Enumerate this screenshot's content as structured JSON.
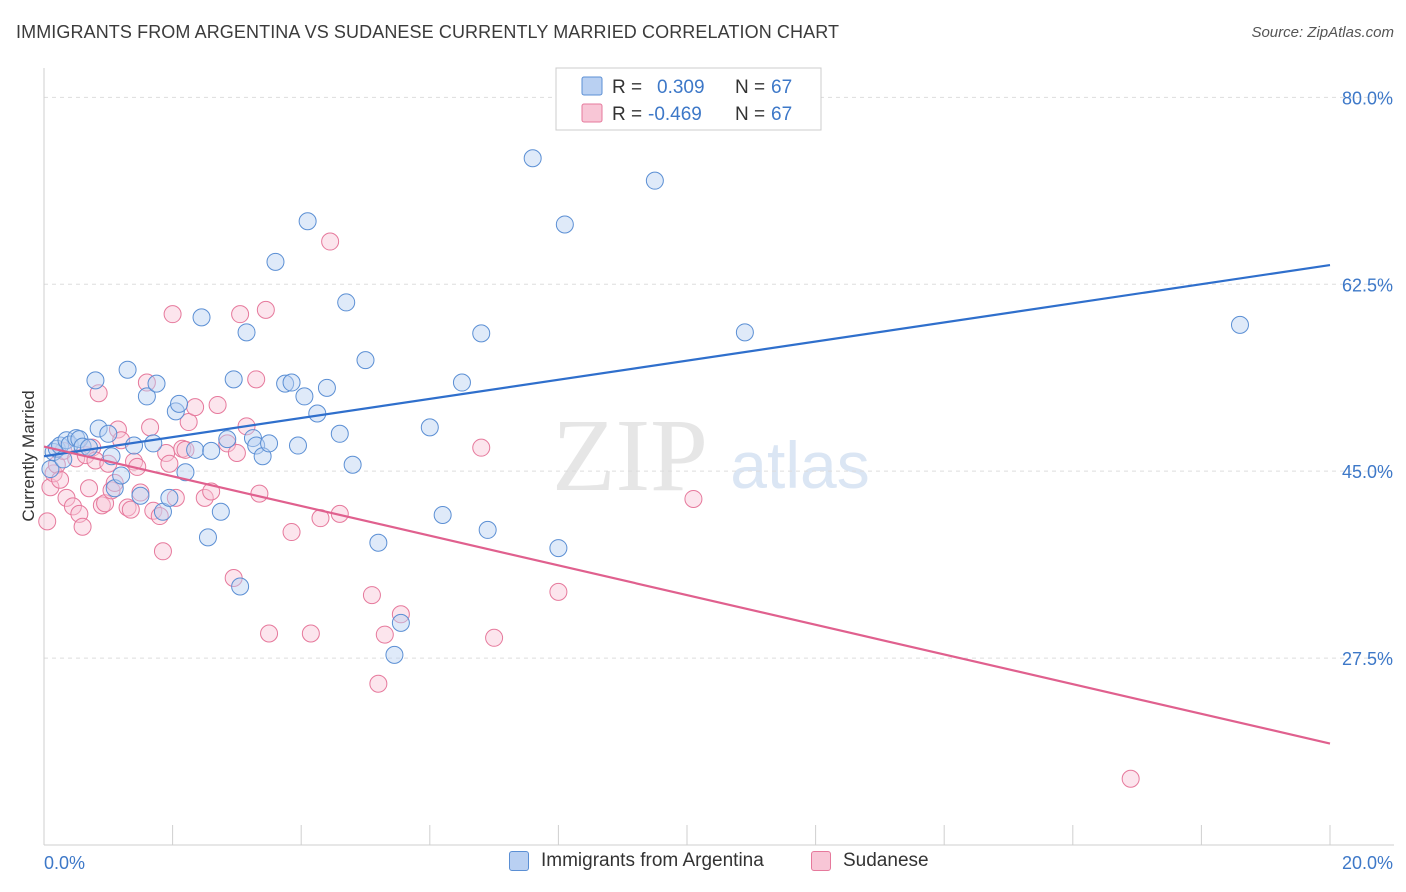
{
  "header": {
    "title": "IMMIGRANTS FROM ARGENTINA VS SUDANESE CURRENTLY MARRIED CORRELATION CHART",
    "source": "Source: ZipAtlas.com"
  },
  "watermark": {
    "zip": "ZIP",
    "atlas": "atlas"
  },
  "colors": {
    "blue": "#5b8fd4",
    "blue_fill": "#b9d0f2",
    "blue_line": "#2f6fcc",
    "pink": "#e6799c",
    "pink_fill": "#f8c6d6",
    "pink_line": "#e0608e",
    "axis_label_blue": "#3d78c8",
    "grid": "#dddddd"
  },
  "legend_top": {
    "rows": [
      {
        "r_label": "R =",
        "r_value": "0.309",
        "n_label": "N =",
        "n_value": "67"
      },
      {
        "r_label": "R =",
        "r_value": "-0.469",
        "n_label": "N =",
        "n_value": "67"
      }
    ]
  },
  "legend_bottom": [
    {
      "label": "Immigrants from Argentina"
    },
    {
      "label": "Sudanese"
    }
  ],
  "chart_data": {
    "type": "scatter",
    "title": "IMMIGRANTS FROM ARGENTINA VS SUDANESE CURRENTLY MARRIED CORRELATION CHART",
    "xlabel": "",
    "ylabel": "Currently Married",
    "xlim": [
      0.0,
      20.0
    ],
    "ylim": [
      10.0,
      82.0
    ],
    "x_tick_labels": [
      "0.0%",
      "20.0%"
    ],
    "y_ticks": [
      27.5,
      45.0,
      62.5,
      80.0
    ],
    "y_tick_labels": [
      "27.5%",
      "45.0%",
      "62.5%",
      "80.0%"
    ],
    "grid": true,
    "legend_position": "top-center",
    "series": [
      {
        "name": "Immigrants from Argentina",
        "color": "#5b8fd4",
        "trend": {
          "x": [
            0.0,
            20.0
          ],
          "y": [
            46.4,
            64.3
          ]
        },
        "points": [
          [
            0.1,
            45.2
          ],
          [
            0.15,
            46.8
          ],
          [
            0.2,
            47.1
          ],
          [
            0.25,
            47.4
          ],
          [
            0.3,
            46.1
          ],
          [
            0.35,
            47.9
          ],
          [
            0.4,
            47.5
          ],
          [
            0.5,
            48.1
          ],
          [
            0.55,
            48.0
          ],
          [
            0.6,
            47.3
          ],
          [
            0.7,
            47.2
          ],
          [
            0.8,
            53.5
          ],
          [
            0.85,
            49.0
          ],
          [
            1.0,
            48.5
          ],
          [
            1.05,
            46.4
          ],
          [
            1.1,
            43.4
          ],
          [
            1.2,
            44.6
          ],
          [
            1.3,
            54.5
          ],
          [
            1.4,
            47.4
          ],
          [
            1.5,
            42.7
          ],
          [
            1.6,
            52.0
          ],
          [
            1.7,
            47.6
          ],
          [
            1.75,
            53.2
          ],
          [
            1.85,
            41.2
          ],
          [
            1.95,
            42.5
          ],
          [
            2.05,
            50.6
          ],
          [
            2.1,
            51.3
          ],
          [
            2.2,
            44.9
          ],
          [
            2.35,
            47.0
          ],
          [
            2.45,
            59.4
          ],
          [
            2.55,
            38.8
          ],
          [
            2.6,
            46.9
          ],
          [
            2.75,
            41.2
          ],
          [
            2.85,
            48.0
          ],
          [
            2.95,
            53.6
          ],
          [
            3.05,
            34.2
          ],
          [
            3.15,
            58.0
          ],
          [
            3.25,
            48.1
          ],
          [
            3.3,
            47.4
          ],
          [
            3.4,
            46.4
          ],
          [
            3.5,
            47.6
          ],
          [
            3.6,
            64.6
          ],
          [
            3.75,
            53.2
          ],
          [
            3.85,
            53.3
          ],
          [
            3.95,
            47.4
          ],
          [
            4.05,
            52.0
          ],
          [
            4.1,
            68.4
          ],
          [
            4.25,
            50.4
          ],
          [
            4.4,
            52.8
          ],
          [
            4.6,
            48.5
          ],
          [
            4.7,
            60.8
          ],
          [
            4.8,
            45.6
          ],
          [
            5.0,
            55.4
          ],
          [
            5.2,
            38.3
          ],
          [
            5.45,
            27.8
          ],
          [
            5.55,
            30.8
          ],
          [
            6.0,
            49.1
          ],
          [
            6.2,
            40.9
          ],
          [
            6.5,
            53.3
          ],
          [
            6.8,
            57.9
          ],
          [
            6.9,
            39.5
          ],
          [
            7.6,
            74.3
          ],
          [
            8.0,
            37.8
          ],
          [
            8.1,
            68.1
          ],
          [
            9.5,
            72.2
          ],
          [
            10.9,
            58.0
          ],
          [
            18.6,
            58.7
          ]
        ]
      },
      {
        "name": "Sudanese",
        "color": "#e6799c",
        "trend": {
          "x": [
            0.0,
            20.0
          ],
          "y": [
            47.3,
            19.5
          ]
        },
        "points": [
          [
            0.05,
            40.3
          ],
          [
            0.1,
            43.5
          ],
          [
            0.15,
            44.8
          ],
          [
            0.2,
            45.6
          ],
          [
            0.25,
            44.2
          ],
          [
            0.3,
            46.9
          ],
          [
            0.35,
            42.5
          ],
          [
            0.45,
            41.7
          ],
          [
            0.5,
            46.2
          ],
          [
            0.55,
            41.0
          ],
          [
            0.6,
            39.8
          ],
          [
            0.65,
            46.5
          ],
          [
            0.7,
            43.4
          ],
          [
            0.75,
            47.2
          ],
          [
            0.8,
            46.0
          ],
          [
            0.85,
            52.3
          ],
          [
            0.9,
            41.8
          ],
          [
            0.95,
            42.0
          ],
          [
            1.0,
            45.7
          ],
          [
            1.05,
            43.2
          ],
          [
            1.1,
            43.9
          ],
          [
            1.15,
            48.9
          ],
          [
            1.2,
            47.9
          ],
          [
            1.3,
            41.6
          ],
          [
            1.35,
            41.4
          ],
          [
            1.4,
            45.9
          ],
          [
            1.45,
            45.4
          ],
          [
            1.5,
            43.0
          ],
          [
            1.6,
            53.3
          ],
          [
            1.65,
            49.1
          ],
          [
            1.7,
            41.3
          ],
          [
            1.8,
            40.8
          ],
          [
            1.85,
            37.5
          ],
          [
            1.9,
            46.7
          ],
          [
            1.95,
            45.7
          ],
          [
            2.0,
            59.7
          ],
          [
            2.05,
            42.5
          ],
          [
            2.15,
            47.1
          ],
          [
            2.25,
            49.6
          ],
          [
            2.35,
            51.0
          ],
          [
            2.5,
            42.5
          ],
          [
            2.6,
            43.1
          ],
          [
            2.7,
            51.2
          ],
          [
            2.85,
            47.6
          ],
          [
            2.95,
            35.0
          ],
          [
            3.0,
            46.7
          ],
          [
            3.05,
            59.7
          ],
          [
            3.15,
            49.2
          ],
          [
            3.3,
            53.6
          ],
          [
            3.35,
            42.9
          ],
          [
            3.45,
            60.1
          ],
          [
            3.5,
            29.8
          ],
          [
            3.85,
            39.3
          ],
          [
            4.15,
            29.8
          ],
          [
            4.45,
            66.5
          ],
          [
            4.6,
            41.0
          ],
          [
            5.1,
            33.4
          ],
          [
            5.2,
            25.1
          ],
          [
            5.3,
            29.7
          ],
          [
            5.55,
            31.6
          ],
          [
            6.8,
            47.2
          ],
          [
            7.0,
            29.4
          ],
          [
            8.0,
            33.7
          ],
          [
            10.1,
            42.4
          ],
          [
            16.9,
            16.2
          ],
          [
            4.3,
            40.6
          ],
          [
            2.2,
            47.0
          ]
        ]
      }
    ]
  }
}
